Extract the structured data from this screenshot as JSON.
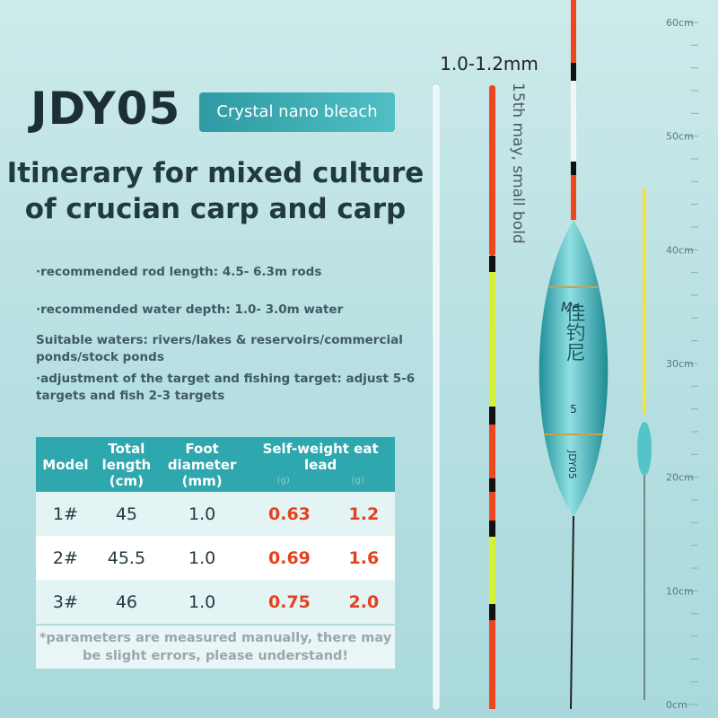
{
  "header": {
    "title": "JDY05",
    "badge": "Crystal nano bleach"
  },
  "headline": [
    "Itinerary for mixed culture",
    "of crucian carp and carp"
  ],
  "specs": [
    "·recommended rod length: 4.5- 6.3m rods",
    "·recommended water depth: 1.0- 3.0m water",
    [
      "Suitable waters: rivers/lakes & reservoirs/commercial",
      "ponds/stock ponds"
    ],
    [
      "·adjustment of the target and fishing target: adjust 5-6",
      "targets and fish 2-3 targets"
    ]
  ],
  "table": {
    "columns": [
      [
        "Model"
      ],
      [
        "Total",
        "length",
        "(cm)"
      ],
      [
        "Foot",
        "diameter",
        "(mm)"
      ],
      [
        "Self-weight eat",
        "lead"
      ]
    ],
    "units": [
      "(g)",
      "(g)"
    ],
    "rows": [
      [
        "1#",
        "45",
        "1.0",
        "0.63",
        "1.2"
      ],
      [
        "2#",
        "45.5",
        "1.0",
        "0.69",
        "1.6"
      ],
      [
        "3#",
        "46",
        "1.0",
        "0.75",
        "2.0"
      ]
    ]
  },
  "footnote": [
    "*parameters are measured manually, there may",
    "be slight errors, please understand!"
  ],
  "diagram": {
    "tip_diameter": "1.0-1.2mm",
    "vertical_note": "15th may, small bold",
    "float_brand": "Me",
    "float_chars": "佳钓尼",
    "float_number": "5",
    "float_model": "JDY05"
  },
  "ruler": [
    "0cm",
    "10cm",
    "20cm",
    "30cm",
    "40cm",
    "50cm",
    "60cm"
  ]
}
